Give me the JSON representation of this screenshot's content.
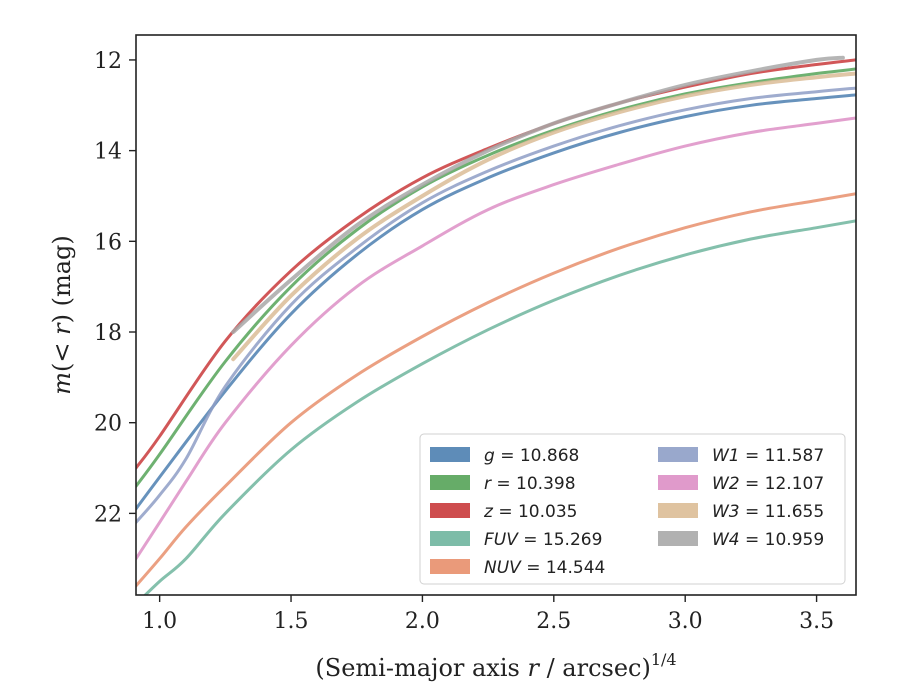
{
  "chart_data": {
    "type": "line",
    "xlabel": "(Semi-major axis r / arcsec)^1/4",
    "xlabel_parts": {
      "prefix": "(Semi-major axis ",
      "var": "r",
      "suffix": " / arcsec)",
      "exponent": "1/4"
    },
    "ylabel": "m(< r) (mag)",
    "ylabel_parts": {
      "var": "m",
      "mid": "(< ",
      "var2": "r",
      "suffix": ") (mag)"
    },
    "xlim": [
      0.91,
      3.65
    ],
    "ylim": [
      23.8,
      11.45
    ],
    "y_inverted": true,
    "x_ticks": [
      1.0,
      1.5,
      2.0,
      2.5,
      3.0,
      3.5
    ],
    "x_tick_labels": [
      "1.0",
      "1.5",
      "2.0",
      "2.5",
      "3.0",
      "3.5"
    ],
    "y_ticks": [
      12,
      14,
      16,
      18,
      20,
      22
    ],
    "y_tick_labels": [
      "12",
      "14",
      "16",
      "18",
      "20",
      "22"
    ],
    "grid": false,
    "legend_position": "lower-right",
    "series": [
      {
        "name": "g = 10.868",
        "legend_var": "g",
        "legend_value": "= 10.868",
        "color": "#4c7fb0",
        "x_start": 0.91,
        "x_end": 3.65,
        "points": [
          [
            0.91,
            21.9
          ],
          [
            1.0,
            21.2
          ],
          [
            1.25,
            19.3
          ],
          [
            1.5,
            17.6
          ],
          [
            1.75,
            16.3
          ],
          [
            2.0,
            15.3
          ],
          [
            2.25,
            14.6
          ],
          [
            2.5,
            14.05
          ],
          [
            2.75,
            13.6
          ],
          [
            3.0,
            13.25
          ],
          [
            3.25,
            13.0
          ],
          [
            3.5,
            12.85
          ],
          [
            3.65,
            12.77
          ]
        ]
      },
      {
        "name": "r = 10.398",
        "legend_var": "r",
        "legend_value": "= 10.398",
        "color": "#55a358",
        "x_start": 0.91,
        "x_end": 3.65,
        "points": [
          [
            0.91,
            21.4
          ],
          [
            1.0,
            20.7
          ],
          [
            1.25,
            18.65
          ],
          [
            1.5,
            17.0
          ],
          [
            1.75,
            15.75
          ],
          [
            2.0,
            14.8
          ],
          [
            2.25,
            14.1
          ],
          [
            2.5,
            13.55
          ],
          [
            2.75,
            13.1
          ],
          [
            3.0,
            12.75
          ],
          [
            3.25,
            12.5
          ],
          [
            3.5,
            12.3
          ],
          [
            3.65,
            12.2
          ]
        ]
      },
      {
        "name": "z = 10.035",
        "legend_var": "z",
        "legend_value": "= 10.035",
        "color": "#c93a3b",
        "x_start": 0.91,
        "x_end": 3.65,
        "points": [
          [
            0.91,
            21.0
          ],
          [
            1.0,
            20.3
          ],
          [
            1.25,
            18.2
          ],
          [
            1.5,
            16.65
          ],
          [
            1.75,
            15.5
          ],
          [
            2.0,
            14.6
          ],
          [
            2.25,
            13.95
          ],
          [
            2.5,
            13.4
          ],
          [
            2.75,
            12.95
          ],
          [
            3.0,
            12.6
          ],
          [
            3.25,
            12.3
          ],
          [
            3.5,
            12.1
          ],
          [
            3.65,
            12.0
          ]
        ]
      },
      {
        "name": "FUV = 15.269",
        "legend_var": "FUV",
        "legend_value": "= 15.269",
        "color": "#6fb59e",
        "x_start": 0.91,
        "x_end": 3.65,
        "points": [
          [
            0.91,
            24.0
          ],
          [
            1.0,
            23.5
          ],
          [
            1.1,
            23.0
          ],
          [
            1.25,
            22.0
          ],
          [
            1.5,
            20.6
          ],
          [
            1.75,
            19.55
          ],
          [
            2.0,
            18.7
          ],
          [
            2.25,
            17.95
          ],
          [
            2.5,
            17.3
          ],
          [
            2.75,
            16.75
          ],
          [
            3.0,
            16.3
          ],
          [
            3.25,
            15.95
          ],
          [
            3.5,
            15.7
          ],
          [
            3.65,
            15.55
          ]
        ]
      },
      {
        "name": "NUV = 14.544",
        "legend_var": "NUV",
        "legend_value": "= 14.544",
        "color": "#e88f6c",
        "x_start": 0.91,
        "x_end": 3.65,
        "points": [
          [
            0.91,
            23.6
          ],
          [
            1.0,
            23.0
          ],
          [
            1.1,
            22.3
          ],
          [
            1.25,
            21.4
          ],
          [
            1.5,
            20.0
          ],
          [
            1.75,
            18.95
          ],
          [
            2.0,
            18.1
          ],
          [
            2.25,
            17.35
          ],
          [
            2.5,
            16.7
          ],
          [
            2.75,
            16.15
          ],
          [
            3.0,
            15.7
          ],
          [
            3.25,
            15.35
          ],
          [
            3.5,
            15.1
          ],
          [
            3.65,
            14.95
          ]
        ]
      },
      {
        "name": "W1 = 11.587",
        "legend_var": "W1",
        "legend_value": "= 11.587",
        "color": "#8e9ec6",
        "x_start": 0.91,
        "x_end": 3.65,
        "points": [
          [
            0.91,
            22.2
          ],
          [
            1.0,
            21.6
          ],
          [
            1.1,
            20.8
          ],
          [
            1.25,
            19.2
          ],
          [
            1.5,
            17.4
          ],
          [
            1.75,
            16.15
          ],
          [
            2.0,
            15.15
          ],
          [
            2.25,
            14.45
          ],
          [
            2.5,
            13.9
          ],
          [
            2.75,
            13.45
          ],
          [
            3.0,
            13.1
          ],
          [
            3.25,
            12.85
          ],
          [
            3.5,
            12.7
          ],
          [
            3.65,
            12.62
          ]
        ]
      },
      {
        "name": "W2 = 12.107",
        "legend_var": "W2",
        "legend_value": "= 12.107",
        "color": "#dd8fc5",
        "x_start": 0.91,
        "x_end": 3.65,
        "points": [
          [
            0.91,
            23.0
          ],
          [
            1.0,
            22.2
          ],
          [
            1.1,
            21.3
          ],
          [
            1.25,
            20.0
          ],
          [
            1.5,
            18.3
          ],
          [
            1.75,
            17.0
          ],
          [
            2.0,
            16.1
          ],
          [
            2.25,
            15.3
          ],
          [
            2.5,
            14.75
          ],
          [
            2.75,
            14.3
          ],
          [
            3.0,
            13.9
          ],
          [
            3.25,
            13.6
          ],
          [
            3.5,
            13.4
          ],
          [
            3.65,
            13.28
          ]
        ]
      },
      {
        "name": "W3 = 11.655",
        "legend_var": "W3",
        "legend_value": "= 11.655",
        "color": "#dbbc96",
        "x_start": 1.28,
        "x_end": 3.65,
        "points": [
          [
            1.28,
            18.6
          ],
          [
            1.5,
            17.2
          ],
          [
            1.75,
            15.95
          ],
          [
            2.0,
            15.0
          ],
          [
            2.25,
            14.2
          ],
          [
            2.5,
            13.6
          ],
          [
            2.75,
            13.15
          ],
          [
            3.0,
            12.8
          ],
          [
            3.25,
            12.55
          ],
          [
            3.5,
            12.38
          ],
          [
            3.65,
            12.3
          ]
        ]
      },
      {
        "name": "W4 = 10.959",
        "legend_var": "W4",
        "legend_value": "= 10.959",
        "color": "#a8a8a8",
        "x_start": 1.28,
        "x_end": 3.6,
        "points": [
          [
            1.28,
            18.0
          ],
          [
            1.5,
            16.85
          ],
          [
            1.75,
            15.65
          ],
          [
            2.0,
            14.75
          ],
          [
            2.25,
            14.0
          ],
          [
            2.5,
            13.4
          ],
          [
            2.75,
            12.95
          ],
          [
            3.0,
            12.55
          ],
          [
            3.25,
            12.25
          ],
          [
            3.5,
            12.0
          ],
          [
            3.6,
            11.95
          ]
        ]
      }
    ]
  }
}
